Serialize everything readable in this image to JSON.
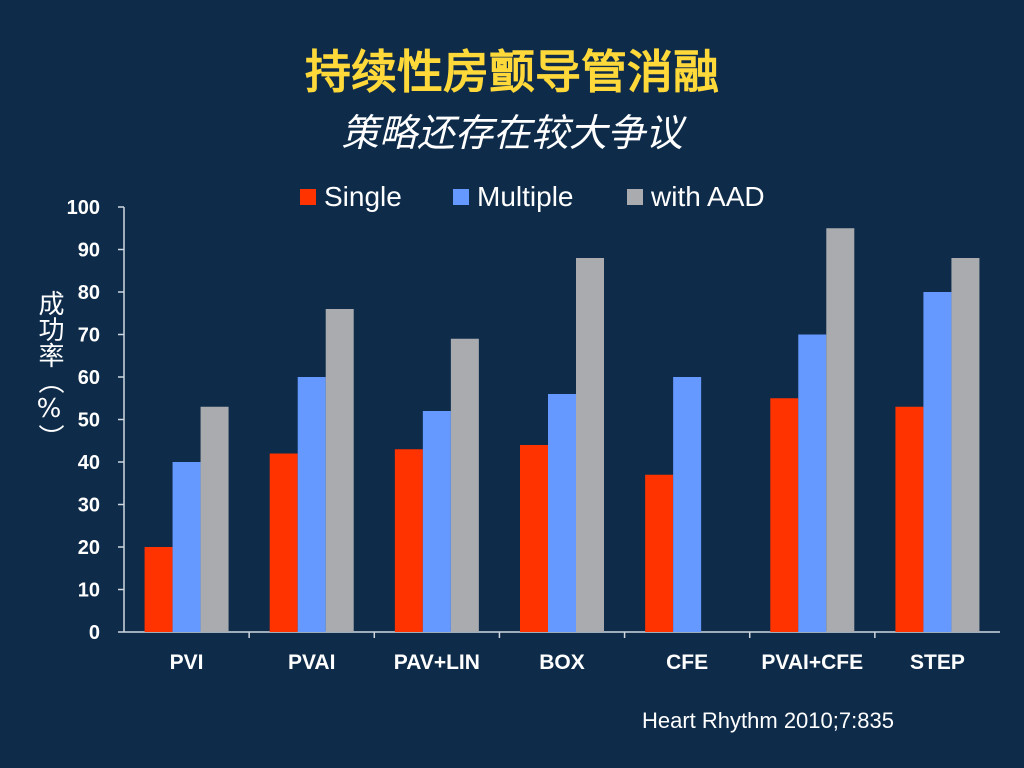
{
  "title": "持续性房颤导管消融",
  "subtitle": "策略还存在较大争议",
  "citation": "Heart Rhythm 2010;7:835",
  "chart_data": {
    "type": "bar",
    "title": "持续性房颤导管消融",
    "subtitle": "策略还存在较大争议",
    "ylabel": "成功率（%）",
    "xlabel": "",
    "ylim": [
      0,
      100
    ],
    "yticks": [
      0,
      10,
      20,
      30,
      40,
      50,
      60,
      70,
      80,
      90,
      100
    ],
    "grid": false,
    "legend_position": "top",
    "categories": [
      "PVI",
      "PVAI",
      "PAV+LIN",
      "BOX",
      "CFE",
      "PVAI+CFE",
      "STEP"
    ],
    "series": [
      {
        "name": "Single",
        "color": "#ff3300",
        "values": [
          20,
          42,
          43,
          44,
          37,
          55,
          53
        ]
      },
      {
        "name": "Multiple",
        "color": "#6699ff",
        "values": [
          40,
          60,
          52,
          56,
          60,
          70,
          80
        ]
      },
      {
        "name": "with AAD",
        "color": "#a9abae",
        "values": [
          53,
          76,
          69,
          88,
          null,
          95,
          88
        ]
      }
    ]
  }
}
